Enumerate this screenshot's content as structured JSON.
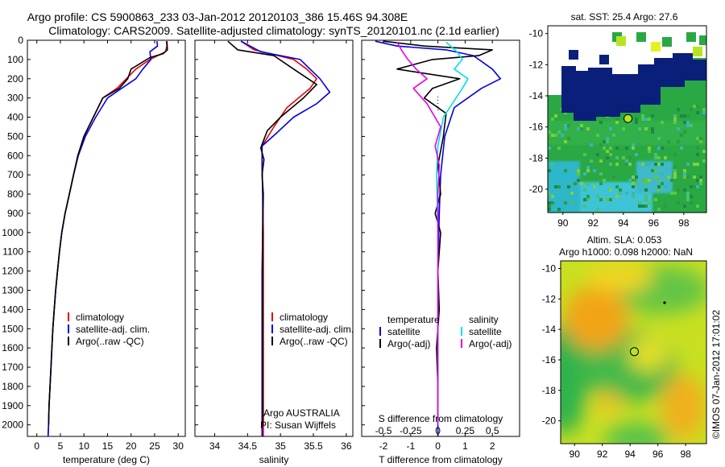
{
  "title_line1": "Argo profile: CS 5900863_233 03-Jan-2012 20120103_386 15.46S 94.308E",
  "title_line2": "Climatology: CARS2009. Satellite-adjusted climatology: synTS_20120101.nc (2.1d earlier)",
  "watermark": "©IMOS 07-Jan-2012 17:01:02",
  "colors": {
    "climatology": "#e60000",
    "satellite": "#0000e6",
    "argo": "#000000",
    "sal_satellite": "#00e0e8",
    "sal_argo": "#e600e6",
    "marker": "#b5e61d",
    "ocean_low": "#1f9a4a"
  },
  "depth_axis": {
    "ylim": [
      0,
      2060
    ],
    "ticks": [
      0,
      100,
      200,
      300,
      400,
      500,
      600,
      700,
      800,
      900,
      1000,
      1100,
      1200,
      1300,
      1400,
      1500,
      1600,
      1700,
      1800,
      1900,
      2000
    ]
  },
  "chart_data": [
    {
      "type": "line",
      "panel": "temperature",
      "xlabel": "temperature (deg C)",
      "xlim": [
        -2,
        31.5
      ],
      "xticks": [
        0,
        5,
        10,
        15,
        20,
        25,
        30
      ],
      "legend": {
        "placement": "lower-left",
        "entries": [
          "climatology",
          "satellite-adj. clim.",
          "Argo(..raw -QC)"
        ]
      },
      "series": [
        {
          "name": "climatology",
          "color": "climatology",
          "points": [
            [
              27.5,
              5
            ],
            [
              27.6,
              30
            ],
            [
              27.3,
              60
            ],
            [
              24,
              100
            ],
            [
              21,
              150
            ],
            [
              19,
              200
            ],
            [
              17,
              250
            ],
            [
              14,
              300
            ],
            [
              12,
              400
            ],
            [
              10,
              500
            ],
            [
              8.7,
              600
            ],
            [
              7.8,
              700
            ],
            [
              6.9,
              800
            ],
            [
              6,
              900
            ],
            [
              5.3,
              1000
            ],
            [
              4.8,
              1100
            ],
            [
              4.4,
              1200
            ],
            [
              4,
              1300
            ],
            [
              3.7,
              1400
            ],
            [
              3.4,
              1500
            ],
            [
              3.2,
              1600
            ],
            [
              3,
              1700
            ],
            [
              2.8,
              1800
            ],
            [
              2.6,
              1900
            ],
            [
              2.5,
              2000
            ],
            [
              2.4,
              2060
            ]
          ]
        },
        {
          "name": "satellite-adj. clim.",
          "color": "satellite",
          "points": [
            [
              25.5,
              5
            ],
            [
              25.6,
              30
            ],
            [
              24,
              60
            ],
            [
              24.2,
              100
            ],
            [
              22.5,
              150
            ],
            [
              21,
              200
            ],
            [
              18,
              250
            ],
            [
              15,
              300
            ],
            [
              12.5,
              400
            ],
            [
              10.3,
              500
            ],
            [
              8.8,
              600
            ],
            [
              7.8,
              700
            ],
            [
              6.9,
              800
            ],
            [
              6,
              900
            ],
            [
              5.3,
              1000
            ],
            [
              4.8,
              1100
            ],
            [
              4.4,
              1200
            ],
            [
              4,
              1300
            ],
            [
              3.7,
              1400
            ],
            [
              3.4,
              1500
            ],
            [
              3.2,
              1600
            ],
            [
              3,
              1700
            ],
            [
              2.8,
              1800
            ],
            [
              2.6,
              1900
            ],
            [
              2.5,
              2000
            ],
            [
              2.4,
              2060
            ]
          ]
        },
        {
          "name": "Argo(..raw -QC)",
          "color": "argo",
          "points": [
            [
              27.6,
              5
            ],
            [
              27.7,
              50
            ],
            [
              26.8,
              70
            ],
            [
              24,
              90
            ],
            [
              20,
              150
            ],
            [
              19.3,
              200
            ],
            [
              17.5,
              250
            ],
            [
              14,
              300
            ],
            [
              12,
              400
            ],
            [
              10,
              500
            ],
            [
              8.7,
              600
            ],
            [
              7.8,
              700
            ],
            [
              6.9,
              800
            ],
            [
              6,
              900
            ],
            [
              5.3,
              1000
            ],
            [
              4.8,
              1100
            ],
            [
              4.4,
              1200
            ],
            [
              4,
              1300
            ],
            [
              3.7,
              1400
            ],
            [
              3.4,
              1500
            ],
            [
              3.2,
              1600
            ],
            [
              3,
              1700
            ],
            [
              2.8,
              1800
            ],
            [
              2.6,
              1900
            ],
            [
              2.5,
              2000
            ]
          ]
        }
      ]
    },
    {
      "type": "line",
      "panel": "salinity",
      "xlabel": "salinity",
      "xlim": [
        33.7,
        36.1
      ],
      "xticks": [
        34,
        34.5,
        35,
        35.5,
        36
      ],
      "legend": {
        "placement": "lower-left",
        "entries": [
          "climatology",
          "satellite-adj. clim.",
          "Argo(..raw -QC)"
        ]
      },
      "annotation": [
        "Argo AUSTRALIA",
        "PI: Susan Wijffels"
      ],
      "series": [
        {
          "name": "climatology",
          "color": "climatology",
          "points": [
            [
              34.4,
              5
            ],
            [
              34.6,
              50
            ],
            [
              35.2,
              100
            ],
            [
              35.4,
              150
            ],
            [
              35.55,
              200
            ],
            [
              35.45,
              250
            ],
            [
              35.1,
              350
            ],
            [
              34.9,
              450
            ],
            [
              34.72,
              550
            ],
            [
              34.72,
              650
            ],
            [
              34.73,
              800
            ],
            [
              34.74,
              1000
            ],
            [
              34.74,
              1200
            ],
            [
              34.74,
              1400
            ],
            [
              34.74,
              1600
            ],
            [
              34.74,
              1800
            ],
            [
              34.74,
              2000
            ],
            [
              34.74,
              2060
            ]
          ]
        },
        {
          "name": "satellite-adj. clim.",
          "color": "satellite",
          "points": [
            [
              34.4,
              5
            ],
            [
              34.7,
              60
            ],
            [
              35.3,
              100
            ],
            [
              35.6,
              200
            ],
            [
              35.75,
              270
            ],
            [
              35.55,
              330
            ],
            [
              35.2,
              400
            ],
            [
              34.95,
              480
            ],
            [
              34.72,
              550
            ],
            [
              34.72,
              650
            ],
            [
              34.73,
              800
            ],
            [
              34.73,
              1000
            ],
            [
              34.72,
              1200
            ],
            [
              34.72,
              1400
            ],
            [
              34.72,
              1600
            ],
            [
              34.72,
              1800
            ],
            [
              34.72,
              2000
            ],
            [
              34.72,
              2060
            ]
          ]
        },
        {
          "name": "Argo(..raw -QC)",
          "color": "argo",
          "points": [
            [
              34.2,
              5
            ],
            [
              34.35,
              50
            ],
            [
              34.9,
              80
            ],
            [
              35.2,
              150
            ],
            [
              35.55,
              230
            ],
            [
              35.35,
              300
            ],
            [
              35.0,
              400
            ],
            [
              34.8,
              470
            ],
            [
              34.7,
              560
            ],
            [
              34.75,
              620
            ],
            [
              34.72,
              700
            ],
            [
              34.74,
              800
            ],
            [
              34.73,
              1000
            ],
            [
              34.73,
              1200
            ],
            [
              34.73,
              1400
            ],
            [
              34.73,
              1600
            ],
            [
              34.73,
              1800
            ],
            [
              34.73,
              2000
            ]
          ]
        }
      ]
    },
    {
      "type": "line",
      "panel": "difference",
      "xlabel_bottom": "T difference from climatology",
      "xlabel_top": "S difference from climatology",
      "t_xlim": [
        -2.8,
        3
      ],
      "t_xticks": [
        -2,
        -1,
        0,
        1,
        2
      ],
      "s_ticks": [
        -0.5,
        -0.25,
        0,
        0.25,
        0.5
      ],
      "s_tick_labels": [
        "-0.5",
        "-0.25",
        "0",
        "0.25",
        "0.5"
      ],
      "legend": {
        "placement": "lower-center",
        "temperature_heading": "temperature",
        "salinity_heading": "salinity",
        "entries": [
          "satellite",
          "Argo(-adj)",
          "satellite",
          "Argo(-adj)"
        ]
      },
      "series": [
        {
          "name": "satellite",
          "group": "temperature",
          "color": "satellite",
          "points": [
            [
              -2.3,
              5
            ],
            [
              -1.5,
              30
            ],
            [
              0.3,
              50
            ],
            [
              1.3,
              80
            ],
            [
              2,
              150
            ],
            [
              2.3,
              200
            ],
            [
              1.6,
              250
            ],
            [
              0.6,
              350
            ],
            [
              0.25,
              500
            ],
            [
              0.1,
              700
            ],
            [
              0.05,
              900
            ],
            [
              0,
              1200
            ],
            [
              0,
              1600
            ],
            [
              0,
              2000
            ],
            [
              0,
              2060
            ]
          ]
        },
        {
          "name": "Argo(-adj)",
          "group": "temperature",
          "color": "argo",
          "points": [
            [
              -2,
              5
            ],
            [
              -0.5,
              30
            ],
            [
              2,
              50
            ],
            [
              1.5,
              80
            ],
            [
              -0.2,
              100
            ],
            [
              -1.5,
              150
            ],
            [
              0.8,
              200
            ],
            [
              -0.2,
              250
            ],
            [
              -0.5,
              300
            ],
            [
              0.3,
              380
            ],
            [
              0.2,
              500
            ],
            [
              0,
              650
            ],
            [
              0.1,
              800
            ],
            [
              -0.1,
              900
            ],
            [
              0.1,
              1000
            ],
            [
              0,
              1200
            ],
            [
              0.05,
              1400
            ],
            [
              -0.05,
              1600
            ],
            [
              0,
              1800
            ],
            [
              0,
              2000
            ]
          ]
        },
        {
          "name": "satellite",
          "group": "salinity",
          "color": "sal_satellite",
          "points": [
            [
              0.3,
              10
            ],
            [
              0.7,
              60
            ],
            [
              0.9,
              100
            ],
            [
              0.6,
              150
            ],
            [
              1.1,
              200
            ],
            [
              0.9,
              250
            ],
            [
              0.2,
              400
            ],
            [
              0,
              550
            ],
            [
              -0.05,
              700
            ],
            [
              0,
              1000
            ],
            [
              0,
              1500
            ],
            [
              0,
              2000
            ]
          ]
        },
        {
          "name": "Argo(-adj)",
          "group": "salinity",
          "color": "sal_argo",
          "points": [
            [
              -1.5,
              10
            ],
            [
              -1.3,
              60
            ],
            [
              -1.1,
              100
            ],
            [
              -0.8,
              150
            ],
            [
              -0.4,
              200
            ],
            [
              -0.9,
              250
            ],
            [
              -0.4,
              330
            ],
            [
              0.1,
              450
            ],
            [
              -0.1,
              550
            ],
            [
              0.05,
              650
            ],
            [
              0,
              800
            ],
            [
              0,
              1000
            ],
            [
              0,
              1500
            ],
            [
              0,
              2000
            ]
          ]
        }
      ]
    },
    {
      "type": "heatmap",
      "panel": "sst_map",
      "title": "sat. SST: 25.4  Argo: 27.6",
      "xlim": [
        89,
        99.5
      ],
      "ylim": [
        -21.5,
        -9.5
      ],
      "xticks": [
        90,
        92,
        94,
        96,
        98
      ],
      "yticks": [
        -10,
        -12,
        -14,
        -16,
        -18,
        -20
      ],
      "argo_position": {
        "lon": 94.308,
        "lat": -15.46
      }
    },
    {
      "type": "heatmap",
      "panel": "sla_map",
      "title_line1": "Altim. SLA: 0.053",
      "title_line2": "Argo h1000: 0.098  h2000: NaN",
      "xlim": [
        89,
        99.5
      ],
      "ylim": [
        -21.5,
        -9.5
      ],
      "xticks": [
        90,
        92,
        94,
        96,
        98
      ],
      "yticks": [
        -10,
        -12,
        -14,
        -16,
        -18,
        -20
      ],
      "argo_position": {
        "lon": 94.308,
        "lat": -15.46
      }
    }
  ]
}
